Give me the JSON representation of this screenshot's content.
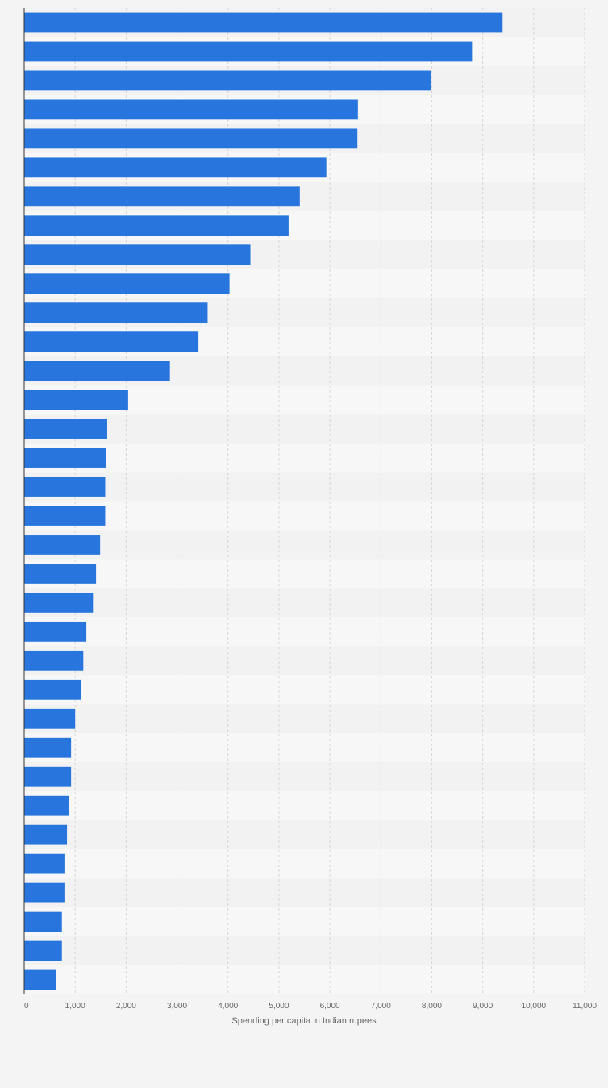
{
  "chart_data": {
    "type": "bar",
    "orientation": "horizontal",
    "xlabel": "Spending per capita in Indian rupees",
    "xlim": [
      0,
      11000
    ],
    "x_ticks": [
      0,
      1000,
      2000,
      3000,
      4000,
      5000,
      6000,
      7000,
      8000,
      9000,
      10000,
      11000
    ],
    "x_tick_labels": [
      "0",
      "1,000",
      "2,000",
      "3,000",
      "4,000",
      "5,000",
      "6,000",
      "7,000",
      "8,000",
      "9,000",
      "10,000",
      "11,000"
    ],
    "grid": true,
    "bar_color": "#2876dd",
    "values": [
      9390,
      8790,
      7980,
      6550,
      6540,
      5930,
      5410,
      5190,
      4440,
      4030,
      3600,
      3420,
      2860,
      2040,
      1630,
      1600,
      1590,
      1590,
      1490,
      1410,
      1350,
      1220,
      1160,
      1110,
      1000,
      920,
      920,
      880,
      840,
      790,
      790,
      740,
      740,
      620
    ]
  }
}
